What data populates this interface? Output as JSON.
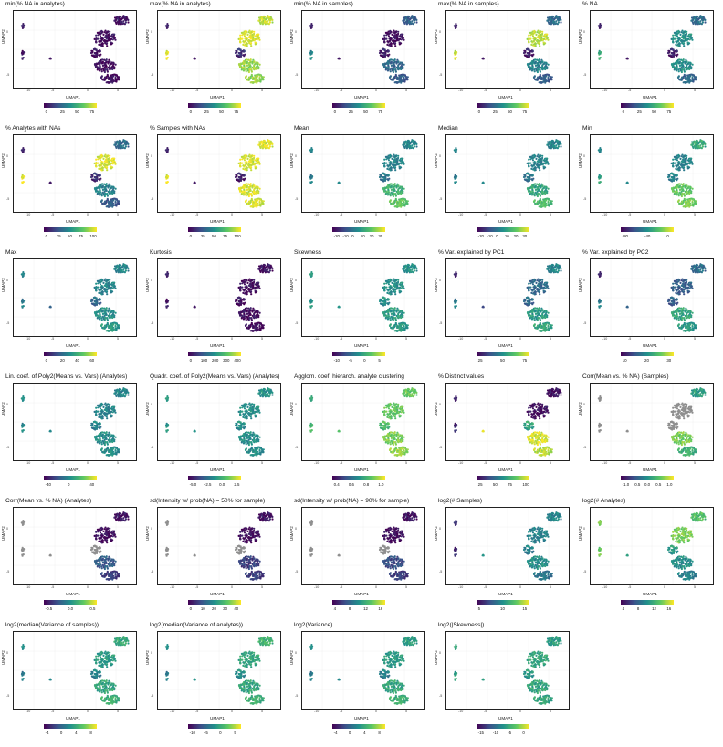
{
  "axes": {
    "xlabel": "UMAP1",
    "ylabel": "UMAP2",
    "xticks": [
      "-10",
      "-5",
      "0",
      "5"
    ],
    "yticks": [
      "0",
      "-5"
    ]
  },
  "palette": [
    "#440154",
    "#3b528b",
    "#21908c",
    "#5dc863",
    "#fde725"
  ],
  "na_color": "#8f8f8f",
  "chart_data": [
    {
      "type": "scatter",
      "title": "min(% NA in analytes)",
      "colorbar": [
        "0",
        "25",
        "50",
        "75"
      ],
      "cluster_values": [
        0.05,
        0.05,
        0.05,
        0.05,
        0.05,
        0.05,
        0.05,
        0.05
      ]
    },
    {
      "type": "scatter",
      "title": "max(% NA in analytes)",
      "colorbar": [
        "0",
        "25",
        "50",
        "75"
      ],
      "cluster_values": [
        0.9,
        0.95,
        0.05,
        0.95,
        0.05,
        0.15,
        0.85,
        0.85
      ]
    },
    {
      "type": "scatter",
      "title": "min(% NA in samples)",
      "colorbar": [
        "0",
        "25",
        "50",
        "75"
      ],
      "cluster_values": [
        0.3,
        0.05,
        0.05,
        0.45,
        0.05,
        0.1,
        0.35,
        0.3
      ]
    },
    {
      "type": "scatter",
      "title": "max(% NA in samples)",
      "colorbar": [
        "0",
        "25",
        "50",
        "75"
      ],
      "cluster_values": [
        0.35,
        0.9,
        0.05,
        0.9,
        0.05,
        0.1,
        0.45,
        0.3
      ]
    },
    {
      "type": "scatter",
      "title": "% NA",
      "colorbar": [
        "0",
        "25",
        "50",
        "75"
      ],
      "cluster_values": [
        0.35,
        0.5,
        0.05,
        0.6,
        0.05,
        0.1,
        0.5,
        0.35
      ]
    },
    {
      "type": "scatter",
      "title": "% Analytes with NAs",
      "colorbar": [
        "0",
        "25",
        "50",
        "75",
        "100"
      ],
      "cluster_values": [
        0.35,
        0.95,
        0.05,
        0.95,
        0.05,
        0.15,
        0.45,
        0.3
      ]
    },
    {
      "type": "scatter",
      "title": "% Samples with NAs",
      "colorbar": [
        "0",
        "25",
        "50",
        "75",
        "100"
      ],
      "cluster_values": [
        0.95,
        0.95,
        0.05,
        0.95,
        0.05,
        0.1,
        0.95,
        0.95
      ]
    },
    {
      "type": "scatter",
      "title": "Mean",
      "colorbar": [
        "-20",
        "-10",
        "0",
        "10",
        "20",
        "30"
      ],
      "cluster_values": [
        0.45,
        0.45,
        0.4,
        0.4,
        0.45,
        0.4,
        0.65,
        0.75
      ]
    },
    {
      "type": "scatter",
      "title": "Median",
      "colorbar": [
        "-20",
        "-10",
        "0",
        "10",
        "20",
        "30"
      ],
      "cluster_values": [
        0.45,
        0.45,
        0.4,
        0.4,
        0.45,
        0.4,
        0.6,
        0.7
      ]
    },
    {
      "type": "scatter",
      "title": "Min",
      "colorbar": [
        "-80",
        "-40",
        "0"
      ],
      "cluster_values": [
        0.6,
        0.45,
        0.4,
        0.55,
        0.45,
        0.45,
        0.75,
        0.8
      ]
    },
    {
      "type": "scatter",
      "title": "Max",
      "colorbar": [
        "0",
        "20",
        "40",
        "60"
      ],
      "cluster_values": [
        0.45,
        0.45,
        0.4,
        0.4,
        0.3,
        0.35,
        0.5,
        0.55
      ]
    },
    {
      "type": "scatter",
      "title": "Kurtosis",
      "colorbar": [
        "0",
        "100",
        "200",
        "300",
        "400"
      ],
      "cluster_values": [
        0.05,
        0.05,
        0.05,
        0.05,
        0.05,
        0.05,
        0.05,
        0.05
      ]
    },
    {
      "type": "scatter",
      "title": "Skewness",
      "colorbar": [
        "-10",
        "-5",
        "0",
        "5"
      ],
      "cluster_values": [
        0.5,
        0.5,
        0.5,
        0.5,
        0.5,
        0.5,
        0.55,
        0.55
      ]
    },
    {
      "type": "scatter",
      "title": "% Var. explained by PC1",
      "colorbar": [
        "25",
        "50",
        "75"
      ],
      "cluster_values": [
        0.45,
        0.35,
        0.05,
        0.4,
        0.2,
        0.35,
        0.55,
        0.6
      ]
    },
    {
      "type": "scatter",
      "title": "% Var. explained by PC2",
      "colorbar": [
        "10",
        "20",
        "30"
      ],
      "cluster_values": [
        0.35,
        0.3,
        0.05,
        0.4,
        0.3,
        0.3,
        0.6,
        0.55
      ]
    },
    {
      "type": "scatter",
      "title": "Lin. coef. of Poly2(Means vs. Vars) (Analytes)",
      "colorbar": [
        "-40",
        "0",
        "40"
      ],
      "cluster_values": [
        0.45,
        0.45,
        0.45,
        0.45,
        0.45,
        0.45,
        0.5,
        0.5
      ]
    },
    {
      "type": "scatter",
      "title": "Quadr. coef. of Poly2(Means vs. Vars) (Analytes)",
      "colorbar": [
        "-5.0",
        "-2.5",
        "0.0",
        "2.5"
      ],
      "cluster_values": [
        0.5,
        0.5,
        0.5,
        0.5,
        0.5,
        0.5,
        0.5,
        0.5
      ]
    },
    {
      "type": "scatter",
      "title": "Agglom. coef. hierarch. analyte clustering",
      "colorbar": [
        "0.4",
        "0.6",
        "0.8",
        "1.0"
      ],
      "cluster_values": [
        0.75,
        0.75,
        0.55,
        0.65,
        0.7,
        0.7,
        0.8,
        0.85
      ]
    },
    {
      "type": "scatter",
      "title": "% Distinct values",
      "colorbar": [
        "25",
        "50",
        "75",
        "100"
      ],
      "cluster_values": [
        0.05,
        0.05,
        0.05,
        0.1,
        0.95,
        0.6,
        0.95,
        0.9
      ]
    },
    {
      "type": "scatter",
      "title": "Corr(Mean vs. % NA) (Samples)",
      "colorbar": [
        "-1.0",
        "-0.5",
        "0.0",
        "0.5",
        "1.0"
      ],
      "cluster_values": [
        0.55,
        null,
        null,
        null,
        null,
        null,
        0.8,
        0.65
      ]
    },
    {
      "type": "scatter",
      "title": "Corr(Mean vs. % NA) (Analytes)",
      "colorbar": [
        "-0.5",
        "0.0",
        "0.5"
      ],
      "cluster_values": [
        0.05,
        0.05,
        null,
        null,
        null,
        null,
        0.3,
        0.2
      ]
    },
    {
      "type": "scatter",
      "title": "sd(Intensity w/ prob(NA) = 50% for sample)",
      "colorbar": [
        "0",
        "10",
        "20",
        "30",
        "40"
      ],
      "cluster_values": [
        0.05,
        0.05,
        null,
        null,
        null,
        null,
        0.2,
        0.2
      ]
    },
    {
      "type": "scatter",
      "title": "sd(Intensity w/ prob(NA) = 90% for sample)",
      "colorbar": [
        "4",
        "8",
        "12",
        "16"
      ],
      "cluster_values": [
        0.05,
        0.05,
        null,
        null,
        null,
        null,
        0.25,
        0.2
      ]
    },
    {
      "type": "scatter",
      "title": "log2(# Samples)",
      "colorbar": [
        "5",
        "10",
        "15"
      ],
      "cluster_values": [
        0.45,
        0.45,
        0.1,
        0.1,
        0.5,
        0.45,
        0.5,
        0.4
      ]
    },
    {
      "type": "scatter",
      "title": "log2(# Analytes)",
      "colorbar": [
        "4",
        "8",
        "12",
        "16"
      ],
      "cluster_values": [
        0.7,
        0.8,
        0.75,
        0.75,
        0.55,
        0.55,
        0.5,
        0.45
      ]
    },
    {
      "type": "scatter",
      "title": "log2(median(Variance of samples))",
      "colorbar": [
        "-4",
        "0",
        "4",
        "8"
      ],
      "cluster_values": [
        0.6,
        0.55,
        0.45,
        0.4,
        0.45,
        0.45,
        0.6,
        0.65
      ]
    },
    {
      "type": "scatter",
      "title": "log2(median(Variance of analytes))",
      "colorbar": [
        "-10",
        "-5",
        "0",
        "5"
      ],
      "cluster_values": [
        0.65,
        0.6,
        0.45,
        0.4,
        0.5,
        0.5,
        0.6,
        0.65
      ]
    },
    {
      "type": "scatter",
      "title": "log2(Variance)",
      "colorbar": [
        "-4",
        "0",
        "4",
        "8"
      ],
      "cluster_values": [
        0.55,
        0.55,
        0.45,
        0.4,
        0.45,
        0.45,
        0.6,
        0.65
      ]
    },
    {
      "type": "scatter",
      "title": "log2(|Skewness|)",
      "colorbar": [
        "-15",
        "-10",
        "-5",
        "0"
      ],
      "cluster_values": [
        0.55,
        0.6,
        0.55,
        0.55,
        0.55,
        0.55,
        0.6,
        0.6
      ]
    }
  ]
}
